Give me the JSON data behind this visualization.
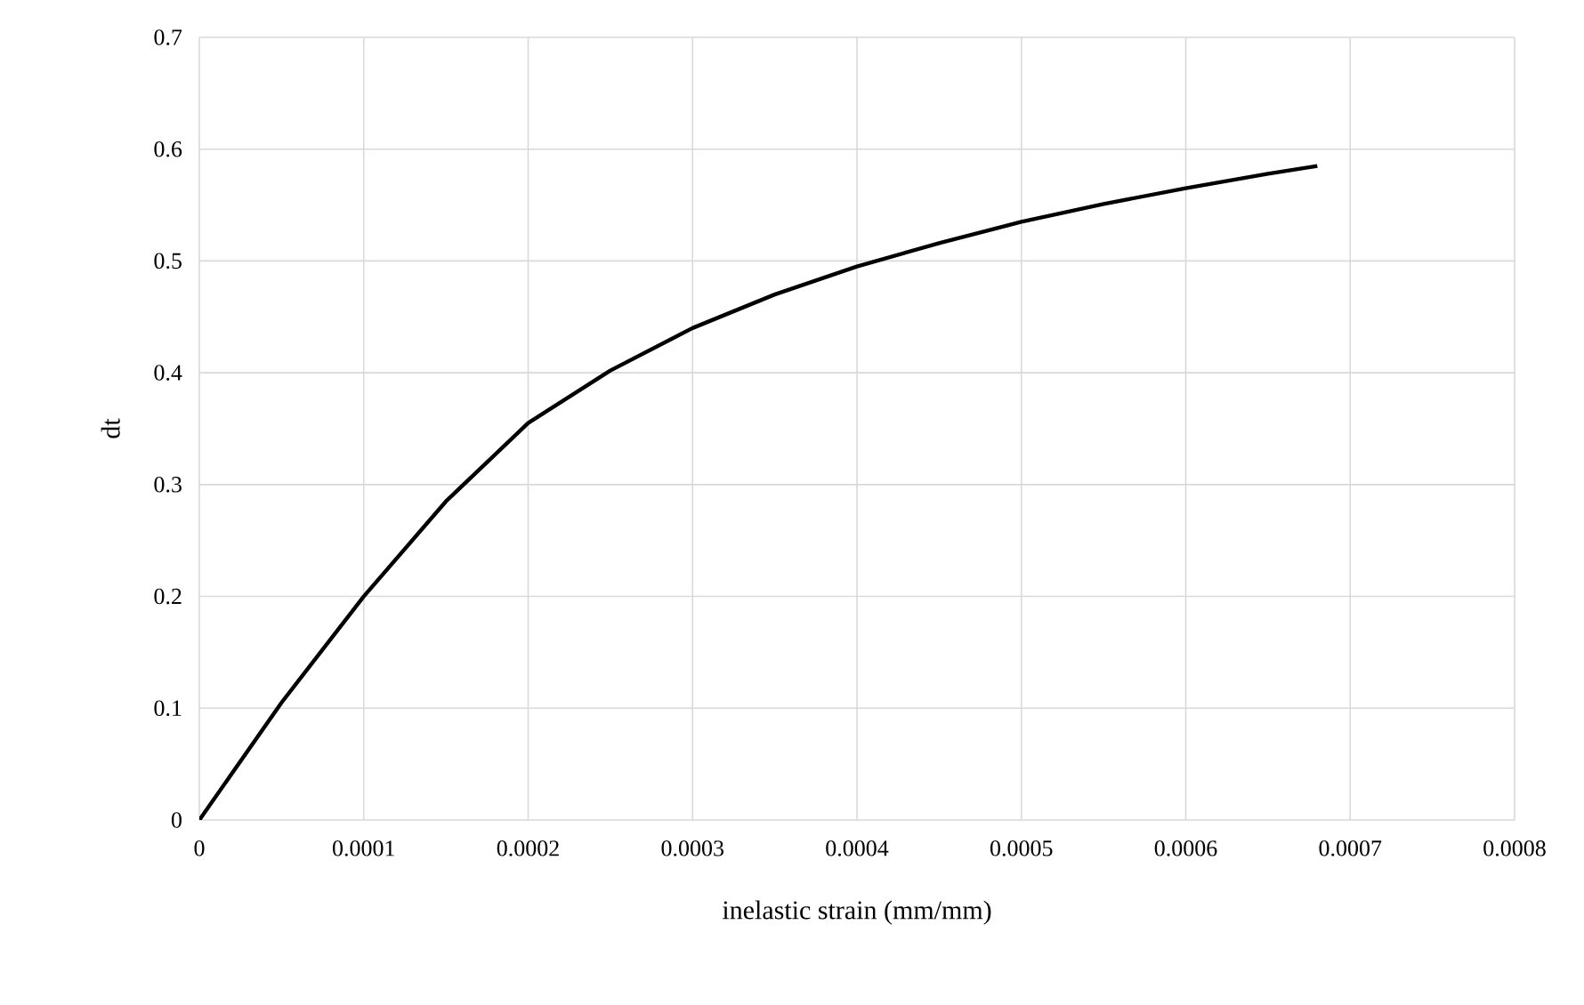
{
  "chart_data": {
    "type": "line",
    "xlabel": "inelastic strain (mm/mm)",
    "ylabel": "dt",
    "series": [
      {
        "color": "#000000",
        "x": [
          0,
          5e-05,
          0.0001,
          0.00015,
          0.0002,
          0.00025,
          0.0003,
          0.00035,
          0.0004,
          0.00045,
          0.0005,
          0.00055,
          0.0006,
          0.00065,
          0.00068
        ],
        "values": [
          0,
          0.105,
          0.2,
          0.285,
          0.355,
          0.402,
          0.44,
          0.47,
          0.495,
          0.516,
          0.535,
          0.551,
          0.565,
          0.578,
          0.585
        ]
      }
    ],
    "xlim": [
      0,
      0.0008
    ],
    "xticks": [
      {
        "value": 0,
        "label": "0"
      },
      {
        "value": 0.0001,
        "label": "0.0001"
      },
      {
        "value": 0.0002,
        "label": "0.0002"
      },
      {
        "value": 0.0003,
        "label": "0.0003"
      },
      {
        "value": 0.0004,
        "label": "0.0004"
      },
      {
        "value": 0.0005,
        "label": "0.0005"
      },
      {
        "value": 0.0006,
        "label": "0.0006"
      },
      {
        "value": 0.0007,
        "label": "0.0007"
      },
      {
        "value": 0.0008,
        "label": "0.0008"
      }
    ],
    "ylim": [
      0,
      0.7
    ],
    "yticks": [
      0,
      0.1,
      0.2,
      0.3,
      0.4,
      0.5,
      0.6,
      0.7
    ],
    "grid": true,
    "marker": "none",
    "line_style": "solid"
  }
}
